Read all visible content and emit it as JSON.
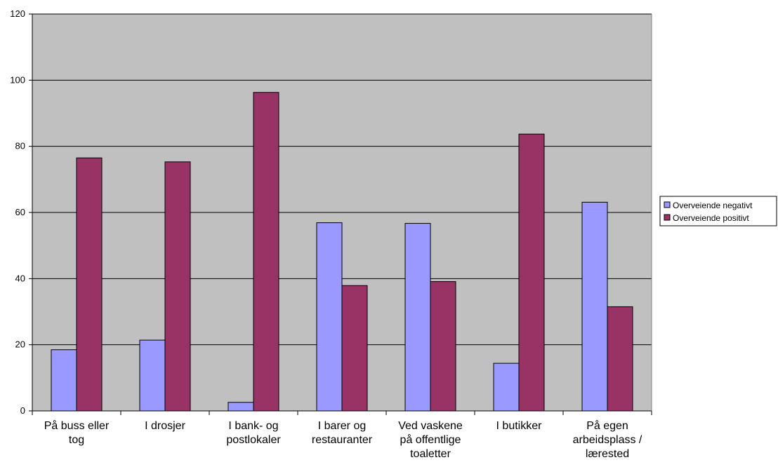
{
  "chart_data": {
    "type": "bar",
    "title": "",
    "xlabel": "",
    "ylabel": "",
    "ylim": [
      0,
      120
    ],
    "yticks": [
      0,
      20,
      40,
      60,
      80,
      100,
      120
    ],
    "grid": true,
    "legend_position": "right",
    "categories": [
      [
        "På buss eller",
        "tog"
      ],
      [
        "I drosjer"
      ],
      [
        "I bank- og",
        "postlokaler"
      ],
      [
        "I barer og",
        "restauranter"
      ],
      [
        "Ved vaskene",
        "på offentlige",
        "toaletter"
      ],
      [
        "I butikker"
      ],
      [
        "På egen",
        "arbeidsplass /",
        "lærested"
      ]
    ],
    "series": [
      {
        "name": "Overveiende negativt",
        "color": "#9999ff",
        "values": [
          18.5,
          21.4,
          2.6,
          56.9,
          56.7,
          14.4,
          63.1
        ]
      },
      {
        "name": "Overveiende positivt",
        "color": "#993366",
        "values": [
          76.5,
          75.3,
          96.3,
          37.9,
          39.1,
          83.7,
          31.5
        ]
      }
    ],
    "plot_background": "#c0c0c0"
  }
}
